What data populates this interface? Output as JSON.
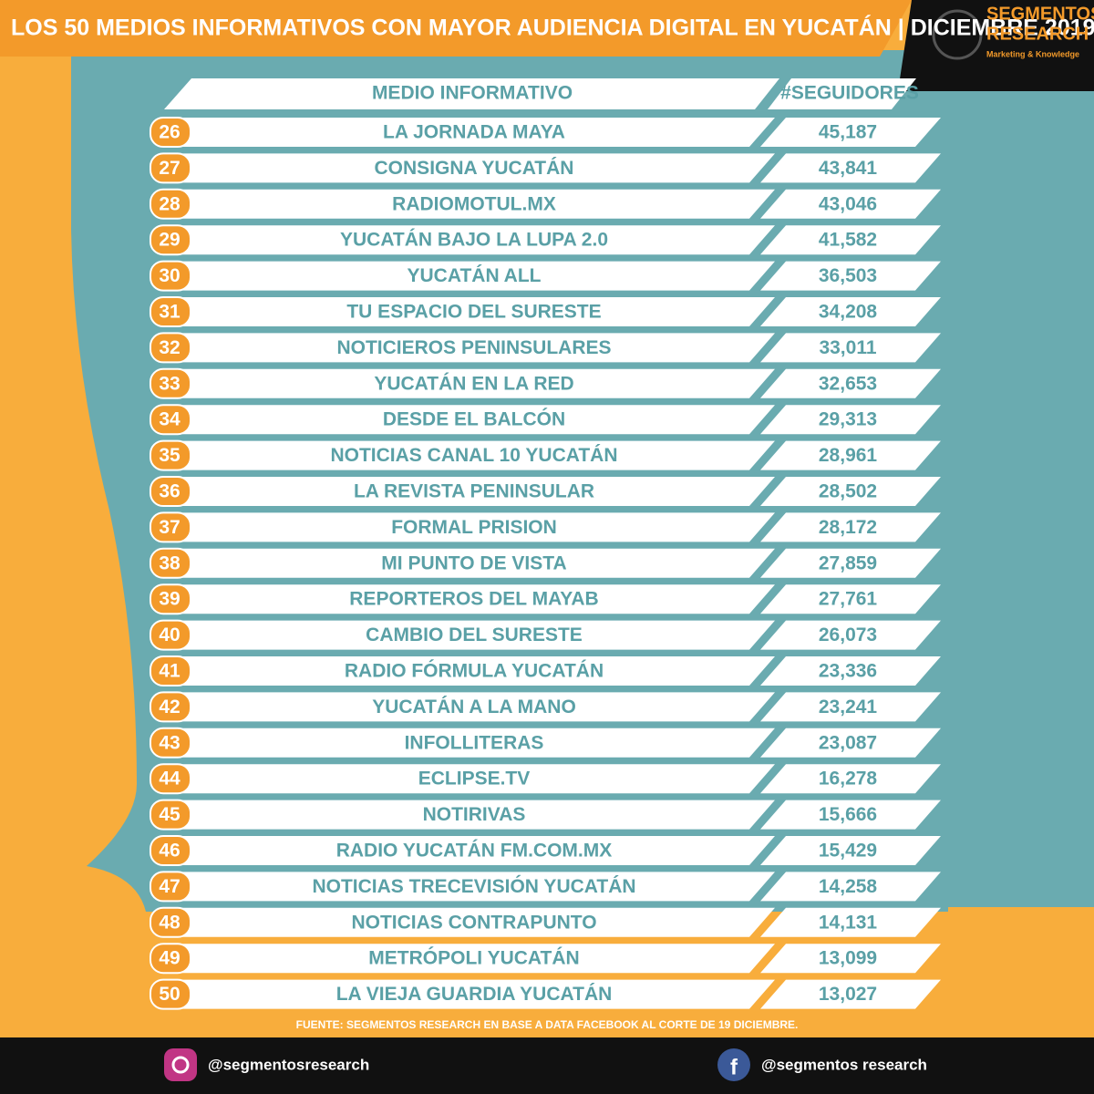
{
  "header": {
    "title": "LOS 50 MEDIOS INFORMATIVOS CON MAYOR AUDIENCIA DIGITAL EN YUCATÁN  |  DICIEMBRE 2019",
    "logo_line1": "SEGMENTOS",
    "logo_line2": "RESEARCH",
    "logo_tagline": "Marketing & Knowledge"
  },
  "table": {
    "columns": [
      "MEDIO INFORMATIVO",
      "#SEGUIDORES"
    ],
    "rows": [
      [
        "26",
        "LA JORNADA MAYA",
        "45,187"
      ],
      [
        "27",
        "CONSIGNA YUCATÁN",
        "43,841"
      ],
      [
        "28",
        "RADIOMOTUL.MX",
        "43,046"
      ],
      [
        "29",
        "YUCATÁN BAJO LA LUPA 2.0",
        "41,582"
      ],
      [
        "30",
        "YUCATÁN ALL",
        "36,503"
      ],
      [
        "31",
        "TU ESPACIO DEL SURESTE",
        "34,208"
      ],
      [
        "32",
        "NOTICIEROS PENINSULARES",
        "33,011"
      ],
      [
        "33",
        "YUCATÁN EN LA RED",
        "32,653"
      ],
      [
        "34",
        "DESDE EL BALCÓN",
        "29,313"
      ],
      [
        "35",
        "NOTICIAS CANAL 10 YUCATÁN",
        "28,961"
      ],
      [
        "36",
        "LA REVISTA PENINSULAR",
        "28,502"
      ],
      [
        "37",
        "FORMAL PRISION",
        "28,172"
      ],
      [
        "38",
        "MI PUNTO DE VISTA",
        "27,859"
      ],
      [
        "39",
        "REPORTEROS DEL MAYAB",
        "27,761"
      ],
      [
        "40",
        "CAMBIO DEL SURESTE",
        "26,073"
      ],
      [
        "41",
        "RADIO FÓRMULA YUCATÁN",
        "23,336"
      ],
      [
        "42",
        "YUCATÁN A LA MANO",
        "23,241"
      ],
      [
        "43",
        "INFOLLITERAS",
        "23,087"
      ],
      [
        "44",
        "ECLIPSE.TV",
        "16,278"
      ],
      [
        "45",
        "NOTIRIVAS",
        "15,666"
      ],
      [
        "46",
        "RADIO YUCATÁN FM.COM.MX",
        "15,429"
      ],
      [
        "47",
        "NOTICIAS TRECEVISIÓN YUCATÁN",
        "14,258"
      ],
      [
        "48",
        "NOTICIAS CONTRAPUNTO",
        "14,131"
      ],
      [
        "49",
        "METRÓPOLI YUCATÁN",
        "13,099"
      ],
      [
        "50",
        "LA VIEJA GUARDIA YUCATÁN",
        "13,027"
      ]
    ]
  },
  "footer": {
    "source": "FUENTE: SEGMENTOS RESEARCH EN BASE A DATA FACEBOOK AL CORTE DE 19 DICIEMBRE.",
    "instagram": "@segmentosresearch",
    "facebook": "@segmentos research"
  }
}
